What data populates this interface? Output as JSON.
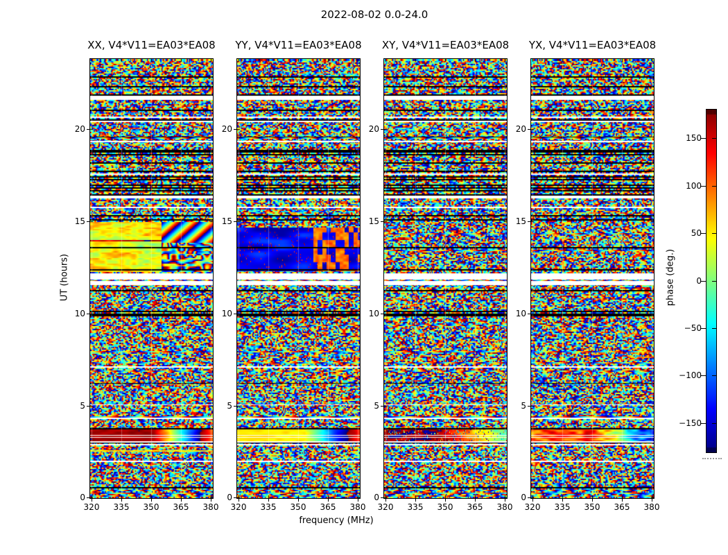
{
  "figure": {
    "title": "2022-08-02 0.0-24.0",
    "background": "#ffffff",
    "text_color": "#000000"
  },
  "axes": {
    "xlabel": "frequency (MHz)",
    "ylabel": "UT (hours)",
    "xticks": [
      320,
      335,
      350,
      365,
      380
    ],
    "yticks": [
      0,
      5,
      10,
      15,
      20
    ]
  },
  "panels": [
    {
      "pol": "XX",
      "title": "XX, V4*V11=EA03*EA08"
    },
    {
      "pol": "YY",
      "title": "YY, V4*V11=EA03*EA08"
    },
    {
      "pol": "XY",
      "title": "XY, V4*V11=EA03*EA08"
    },
    {
      "pol": "YX",
      "title": "YX, V4*V11=EA03*EA08"
    }
  ],
  "colorbar": {
    "label": "phase (deg.)",
    "ticks": [
      150,
      100,
      50,
      0,
      -50,
      -100,
      -150
    ],
    "vmin": -180,
    "vmax": 180,
    "colormap": "jet",
    "top_color": "#800000",
    "bottom_color": "#000080",
    "hatched_ends": true
  },
  "chart_data": {
    "type": "heatmap",
    "title": "2022-08-02 0.0-24.0",
    "xlabel": "frequency (MHz)",
    "ylabel": "UT (hours)",
    "value_label": "phase (deg.)",
    "value_range": [
      -180,
      180
    ],
    "colormap": "jet",
    "xlim": [
      319.3,
      380.7
    ],
    "ylim": [
      0,
      23.8
    ],
    "xticks": [
      320,
      335,
      350,
      365,
      380
    ],
    "yticks": [
      0,
      5,
      10,
      15,
      20
    ],
    "colorbar_ticks": [
      150,
      100,
      50,
      0,
      -50,
      -100,
      -150
    ],
    "panels": [
      "XX, V4*V11=EA03*EA08",
      "YY, V4*V11=EA03*EA08",
      "XY, V4*V11=EA03*EA08",
      "YX, V4*V11=EA03*EA08"
    ],
    "content": "Interferometer baseline V4*V11 (EA03*EA08) visibility phase versus frequency (x) and UT time (y) for the four polarization products; phase wrapping yields rainbow fringe noise with flagged black rows and white data gaps.",
    "features": [
      "white horizontal data gaps near UT 11.6-12.2 h in all panels",
      "bright red calibrator band near UT 3.1-3.7 h (red in XX/XY, yellow-green in YY, orange in YX) crossed by thin white rows",
      "XX panel: smooth yellow-green block UT ~12.3-15 h with red streak rows and diagonal fringes above ~355 MHz",
      "YY panel: deep blue block UT ~12.3-14.7 h with orange column blocks above ~358 MHz",
      "dense thin black flagged rows between UT ~16 and ~19.5 h and near UT 10, 14, 21 h",
      "colorbar hatched at both ends with dotted mark below"
    ],
    "render_params": {
      "rows": 316,
      "cols": 177,
      "wrap_amplitude_deg": 760,
      "octaves": [
        [
          26,
          2.8,
          1.5
        ],
        [
          9,
          1.4,
          0.8
        ],
        [
          3.5,
          1.0,
          0.4
        ]
      ],
      "scan_len_range": [
        6,
        26
      ],
      "scan_offset_deg": 500,
      "scan_boundary_black_prob": 0.45,
      "barcode_row_prob": 0.05,
      "white_row_prob": 0.012,
      "white_gaps_hours": [
        [
          11.55,
          11.78
        ],
        [
          11.84,
          12.18
        ],
        [
          19.28,
          19.36
        ],
        [
          17.52,
          17.58
        ],
        [
          16.33,
          16.4
        ],
        [
          5.02,
          5.09
        ],
        [
          4.3,
          4.37
        ],
        [
          2.87,
          2.94
        ]
      ],
      "black_row_bands": [
        [
          16.2,
          19.6,
          0.22
        ],
        [
          12.9,
          14.2,
          0.12
        ],
        [
          9.9,
          10.6,
          0.2
        ],
        [
          20.6,
          21.0,
          0.15
        ],
        [
          6.2,
          6.6,
          0.1
        ],
        [
          0,
          23.8,
          0.02
        ]
      ],
      "cal_band_hours": [
        3.05,
        3.72
      ],
      "cal_band_white_rows": [
        [
          3.28,
          3.32
        ],
        [
          3.38,
          3.42
        ]
      ],
      "cal_band_black_rows": [
        [
          2.98,
          3.04
        ],
        [
          3.74,
          3.8
        ]
      ],
      "cal_band_phase0": [
        168,
        52,
        170,
        115
      ],
      "cal_band_break_frac": [
        0.52,
        0.55,
        0.45,
        0.5
      ],
      "cal_band_slope": [
        900,
        650,
        350,
        500
      ],
      "cal_band_noise": [
        14,
        12,
        30,
        55
      ],
      "xx_block_hours": [
        12.25,
        14.95
      ],
      "yy_block_hours": [
        12.3,
        14.65
      ],
      "yellow_row_hours": [
        2.52,
        2.6
      ]
    }
  }
}
